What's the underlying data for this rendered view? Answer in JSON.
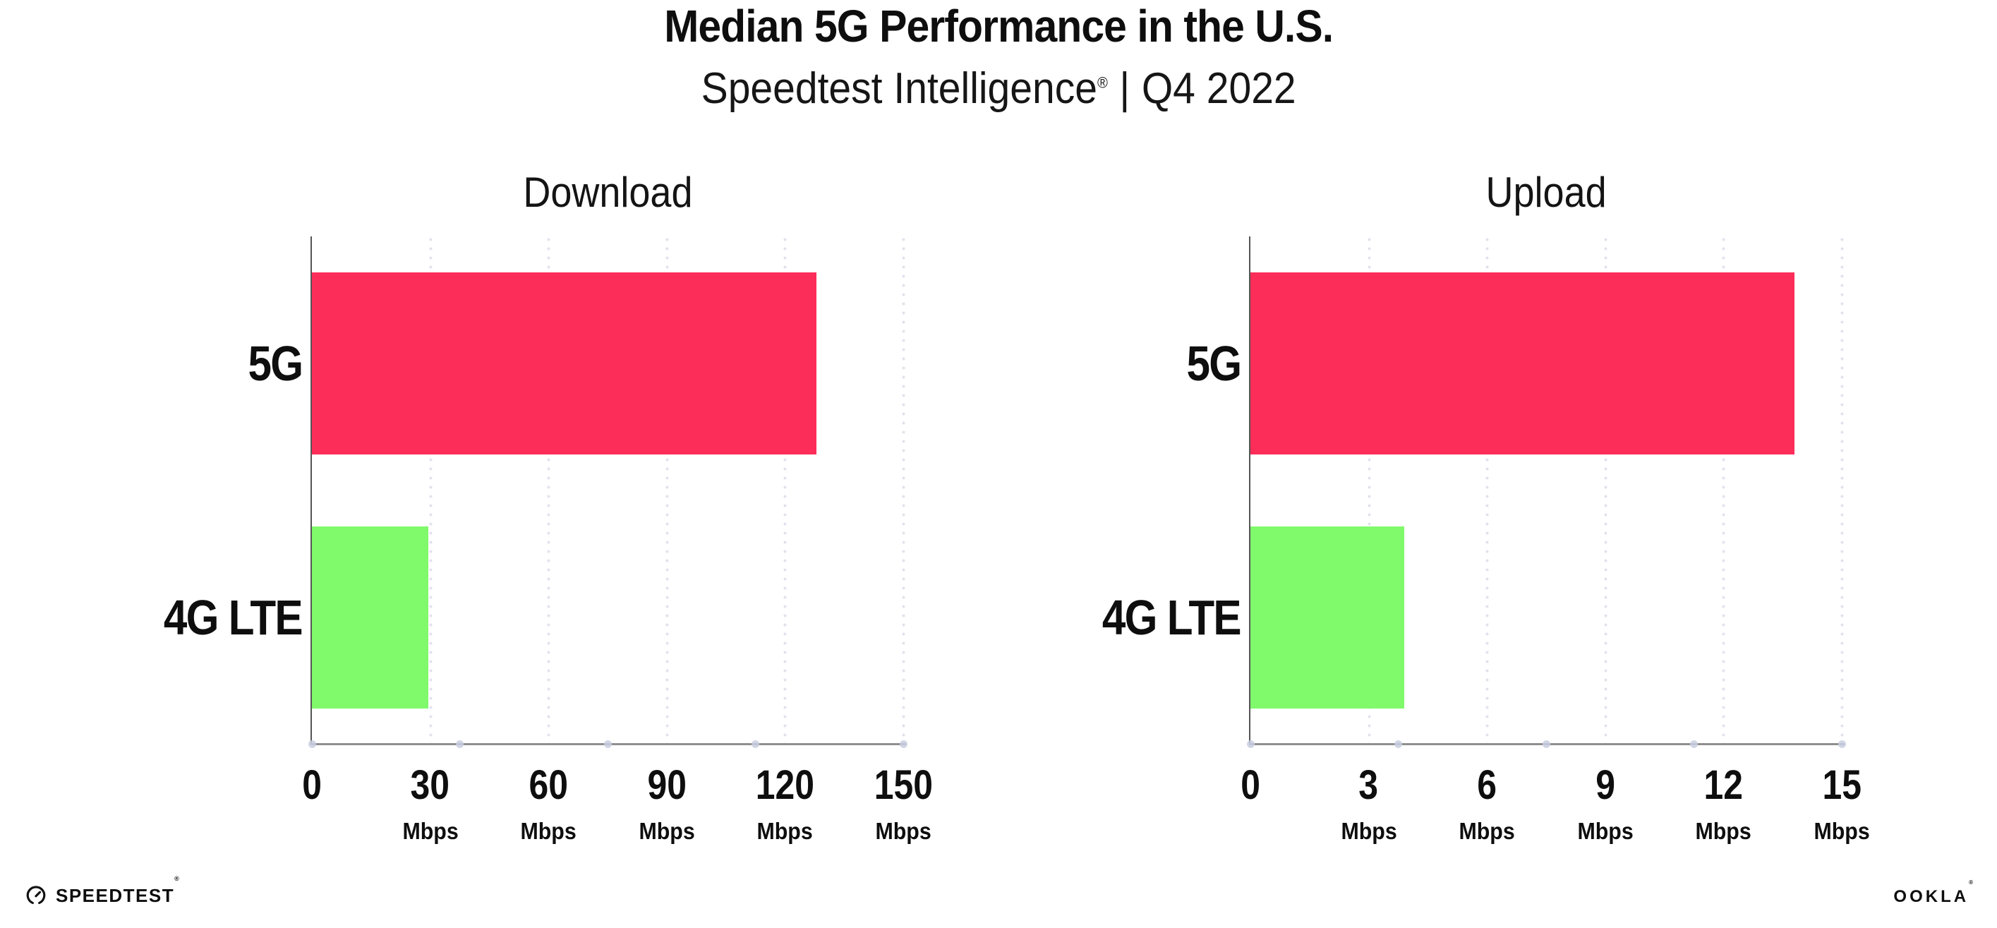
{
  "header": {
    "title": "Median 5G Performance in the U.S.",
    "subtitle": {
      "brand": "Speedtest Intelligence",
      "reg_mark": "®",
      "separator": "|",
      "period": "Q4 2022"
    }
  },
  "chart_data": [
    {
      "type": "bar",
      "orientation": "horizontal",
      "title": "Download",
      "categories": [
        "5G",
        "4G LTE"
      ],
      "values": [
        128,
        29.5
      ],
      "unit": "Mbps",
      "xlim": [
        0,
        150
      ],
      "xticks": [
        0,
        30,
        60,
        90,
        120,
        150
      ],
      "tick_unit": "Mbps",
      "bar_colors": [
        "#FD2D59",
        "#80F96B"
      ],
      "grid": "vertical-dotted",
      "legend": "none"
    },
    {
      "type": "bar",
      "orientation": "horizontal",
      "title": "Upload",
      "categories": [
        "5G",
        "4G LTE"
      ],
      "values": [
        13.8,
        3.9
      ],
      "unit": "Mbps",
      "xlim": [
        0,
        15
      ],
      "xticks": [
        0,
        3,
        6,
        9,
        12,
        15
      ],
      "tick_unit": "Mbps",
      "bar_colors": [
        "#FD2D59",
        "#80F96B"
      ],
      "grid": "vertical-dotted",
      "legend": "none"
    }
  ],
  "colors": {
    "accent_pink": "#FD2D59",
    "accent_green": "#80F96B",
    "y_axis": "#555555",
    "x_axis": "#8f8f8f",
    "gridline_dot": "#e2e2ee",
    "axis_tick_dot": "#c9cfe2",
    "ink": "#0e0e0e"
  },
  "footer": {
    "speedtest": {
      "icon": "speedtest-gauge-icon",
      "label": "SPEEDTEST",
      "reg_mark": "®"
    },
    "ookla": {
      "label": "OOKLA",
      "reg_mark": "®"
    }
  }
}
